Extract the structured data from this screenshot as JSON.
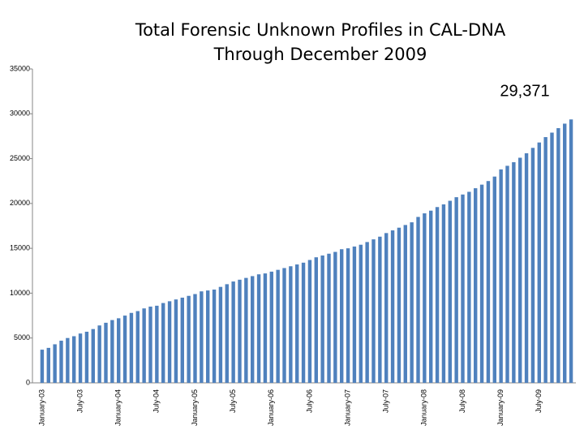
{
  "chart_data": {
    "type": "bar",
    "title": "Total Forensic Unknown Profiles in CAL-DNA",
    "subtitle": "Through December 2009",
    "annotation": "29,371",
    "color": "#4f81bd",
    "categories": [
      "January-03",
      null,
      null,
      null,
      null,
      null,
      "July-03",
      null,
      null,
      null,
      null,
      null,
      "January-04",
      null,
      null,
      null,
      null,
      null,
      "July-04",
      null,
      null,
      null,
      null,
      null,
      "January-05",
      null,
      null,
      null,
      null,
      null,
      "July-05",
      null,
      null,
      null,
      null,
      null,
      "January-06",
      null,
      null,
      null,
      null,
      null,
      "July-06",
      null,
      null,
      null,
      null,
      null,
      "January-07",
      null,
      null,
      null,
      null,
      null,
      "July-07",
      null,
      null,
      null,
      null,
      null,
      "January-08",
      null,
      null,
      null,
      null,
      null,
      "July-08",
      null,
      null,
      null,
      null,
      null,
      "January-09",
      null,
      null,
      null,
      null,
      null,
      "July-09",
      null,
      null,
      null,
      null,
      null
    ],
    "values": [
      3700,
      3900,
      4300,
      4700,
      5000,
      5200,
      5500,
      5700,
      6000,
      6400,
      6700,
      7000,
      7200,
      7500,
      7800,
      8000,
      8300,
      8500,
      8600,
      8900,
      9100,
      9300,
      9500,
      9700,
      9900,
      10200,
      10300,
      10400,
      10700,
      11000,
      11300,
      11500,
      11700,
      11900,
      12100,
      12200,
      12400,
      12600,
      12800,
      13000,
      13200,
      13400,
      13700,
      14000,
      14200,
      14400,
      14600,
      14900,
      15000,
      15200,
      15400,
      15700,
      16000,
      16300,
      16700,
      17000,
      17300,
      17600,
      17900,
      18500,
      18900,
      19200,
      19600,
      19900,
      20300,
      20700,
      21000,
      21300,
      21700,
      22100,
      22500,
      23000,
      23800,
      24200,
      24600,
      25100,
      25600,
      26200,
      26800,
      27400,
      27900,
      28400,
      28900,
      29371
    ],
    "ylim": [
      0,
      35000
    ],
    "yticks": [
      0,
      5000,
      10000,
      15000,
      20000,
      25000,
      30000,
      35000
    ],
    "grid": false
  }
}
